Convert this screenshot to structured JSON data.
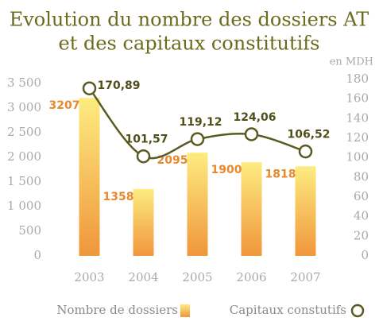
{
  "chart_data": {
    "type": "bar_line",
    "title": [
      "Evolution du nombre des dossiers AT",
      "et des capitaux constitutifs"
    ],
    "y2_unit": "en MDH",
    "categories": [
      "2003",
      "2004",
      "2005",
      "2006",
      "2007"
    ],
    "series": [
      {
        "name": "Nombre de dossiers",
        "type": "bar",
        "color": [
          "#fdec80",
          "#f0963c"
        ],
        "values": [
          3207,
          1358,
          2095,
          1900,
          1818
        ]
      },
      {
        "name": "Capitaux constutifs",
        "type": "line",
        "axis": "y2",
        "color": "#5a5a22",
        "values": [
          170.89,
          101.57,
          119.12,
          124.06,
          106.52
        ],
        "value_labels": [
          "170,89",
          "101,57",
          "119,12",
          "124,06",
          "106,52"
        ]
      }
    ],
    "ylim": [
      0,
      3500
    ],
    "yticks": [
      0,
      500,
      {
        "value": 1000,
        "label": "1 000"
      },
      {
        "value": 1500,
        "label": "1 500"
      },
      {
        "value": 2000,
        "label": "2 000"
      },
      {
        "value": 2500,
        "label": "2 500"
      },
      {
        "value": 3000,
        "label": "3 000"
      },
      {
        "value": 3500,
        "label": "3 500"
      }
    ],
    "y2lim": [
      0,
      180
    ],
    "y2ticks": [
      0,
      20,
      40,
      60,
      80,
      100,
      120,
      140,
      160,
      180
    ]
  }
}
